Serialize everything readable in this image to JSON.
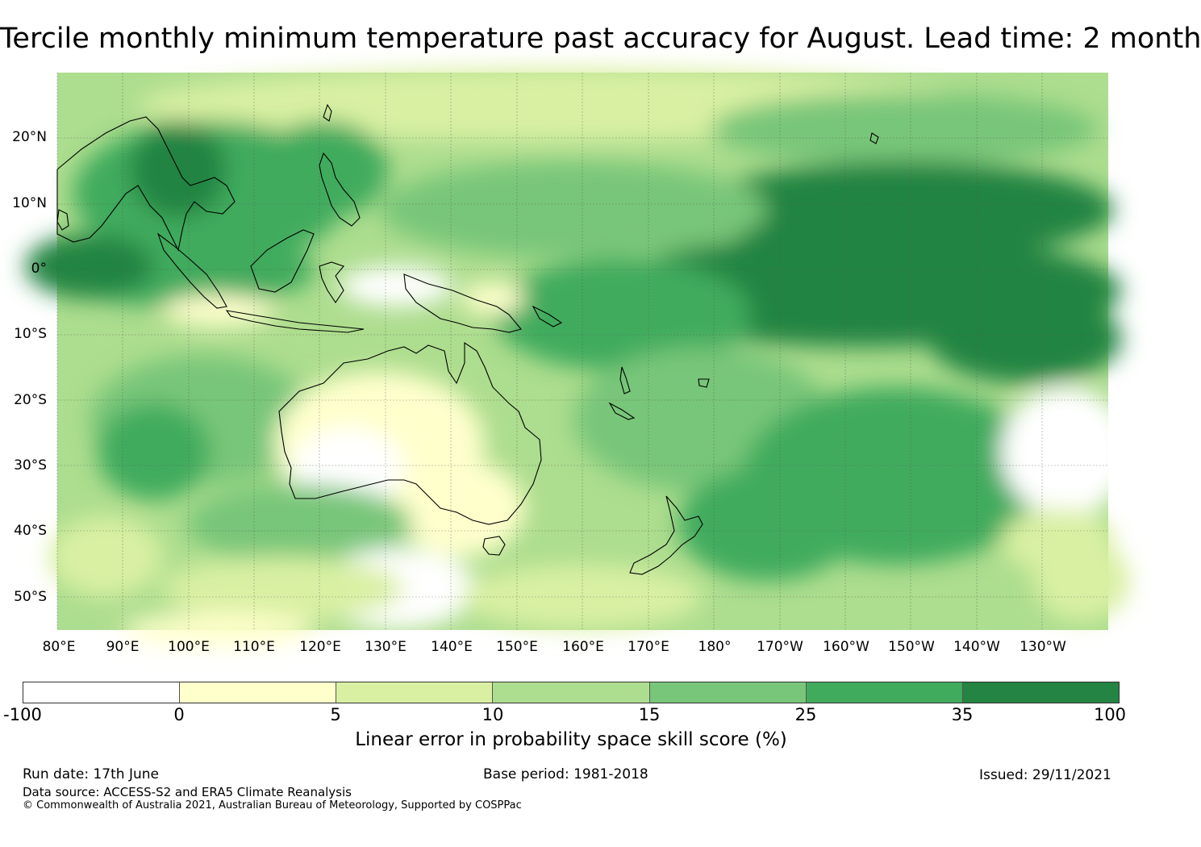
{
  "title": "Tercile monthly minimum temperature past accuracy for August. Lead time: 2 month",
  "map": {
    "lat_labels": [
      "20°N",
      "10°N",
      "0°",
      "10°S",
      "20°S",
      "30°S",
      "40°S",
      "50°S"
    ],
    "lon_labels": [
      "80°E",
      "90°E",
      "100°E",
      "110°E",
      "120°E",
      "130°E",
      "140°E",
      "150°E",
      "160°E",
      "170°E",
      "180°",
      "170°W",
      "160°W",
      "150°W",
      "140°W",
      "130°W"
    ],
    "region": "Indian Ocean, Maritime Continent, Australia and South Pacific"
  },
  "colorbar": {
    "ticks": [
      "-100",
      "0",
      "5",
      "10",
      "15",
      "25",
      "35",
      "100"
    ],
    "colors": [
      "#ffffff",
      "#ffffcc",
      "#d9f0a3",
      "#addd8e",
      "#78c679",
      "#41ab5d",
      "#238443"
    ],
    "label": "Linear error in probability space skill score (%)"
  },
  "footer": {
    "run_date": "Run date: 17th June",
    "base_period": "Base period: 1981-2018",
    "issued": "Issued: 29/11/2021",
    "data_source": "Data source: ACCESS-S2 and ERA5 Climate Reanalysis",
    "copyright": "© Commonwealth of Australia 2021, Australian Bureau of Meteorology, Supported by COSPPac"
  }
}
